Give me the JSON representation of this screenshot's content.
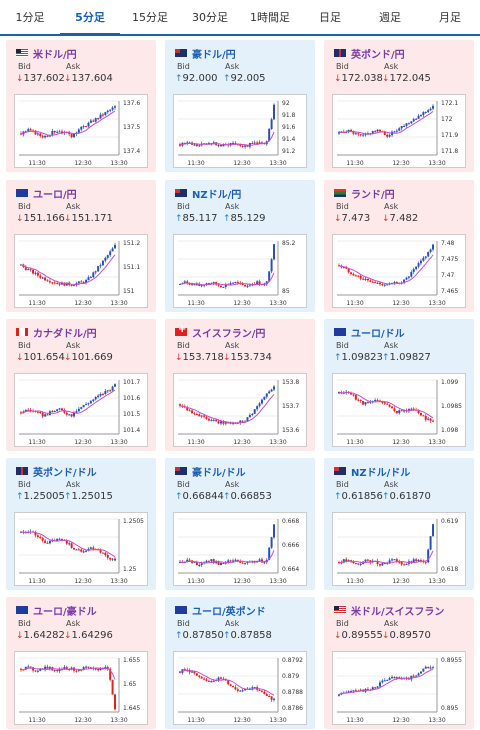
{
  "tabs": [
    "1分足",
    "5分足",
    "15分足",
    "30分足",
    "1時間足",
    "日足",
    "週足",
    "月足"
  ],
  "active_tab": "5分足",
  "labels": {
    "bid": "Bid",
    "ask": "Ask"
  },
  "cards": [
    {
      "pair": "米ドル/円",
      "flag": "us",
      "dir": "down",
      "arrow": "↓",
      "bid": "137.602",
      "ask": "137.604",
      "y_ticks": [
        "137.6",
        "137.5",
        "137.4"
      ],
      "x_ticks": [
        "11:30",
        "12:30",
        "13:30"
      ],
      "trend": "rise_end"
    },
    {
      "pair": "豪ドル/円",
      "flag": "au",
      "dir": "up",
      "arrow": "↑",
      "bid": "92.000",
      "ask": "92.005",
      "y_ticks": [
        "92",
        "91.8",
        "91.6",
        "91.4",
        "91.2"
      ],
      "x_ticks": [
        "11:30",
        "12:30",
        "13:30"
      ],
      "trend": "flat_spike"
    },
    {
      "pair": "英ポンド/円",
      "flag": "gb",
      "dir": "down",
      "arrow": "↓",
      "bid": "172.038",
      "ask": "172.045",
      "y_ticks": [
        "172.1",
        "172",
        "171.9",
        "171.8"
      ],
      "x_ticks": [
        "11:30",
        "12:30",
        "13:30"
      ],
      "trend": "rise_end"
    },
    {
      "pair": "ユーロ/円",
      "flag": "eu",
      "dir": "down",
      "arrow": "↓",
      "bid": "151.166",
      "ask": "151.171",
      "y_ticks": [
        "151.2",
        "151.1",
        "151"
      ],
      "x_ticks": [
        "11:30",
        "12:30",
        "13:30"
      ],
      "trend": "dip_rise"
    },
    {
      "pair": "NZドル/円",
      "flag": "nz",
      "dir": "up",
      "arrow": "↑",
      "bid": "85.117",
      "ask": "85.129",
      "y_ticks": [
        "85.2",
        "85"
      ],
      "x_ticks": [
        "11:30",
        "12:30",
        "13:30"
      ],
      "trend": "flat_spike"
    },
    {
      "pair": "ランド/円",
      "flag": "za",
      "dir": "down",
      "arrow": "↓",
      "bid": "7.473",
      "ask": "7.482",
      "y_ticks": [
        "7.48",
        "7.475",
        "7.47",
        "7.465"
      ],
      "x_ticks": [
        "11:30",
        "12:30",
        "13:30"
      ],
      "trend": "dip_rise"
    },
    {
      "pair": "カナダドル/円",
      "flag": "ca",
      "dir": "down",
      "arrow": "↓",
      "bid": "101.654",
      "ask": "101.669",
      "y_ticks": [
        "101.7",
        "101.6",
        "101.5",
        "101.4"
      ],
      "x_ticks": [
        "11:30",
        "12:30",
        "13:30"
      ],
      "trend": "rise_end"
    },
    {
      "pair": "スイスフラン/円",
      "flag": "ch",
      "dir": "down",
      "arrow": "↓",
      "bid": "153.718",
      "ask": "153.734",
      "y_ticks": [
        "153.8",
        "153.7",
        "153.6"
      ],
      "x_ticks": [
        "11:30",
        "12:30",
        "13:30"
      ],
      "trend": "dip_rise"
    },
    {
      "pair": "ユーロ/ドル",
      "flag": "eu",
      "dir": "up",
      "arrow": "↑",
      "bid": "1.09823",
      "ask": "1.09827",
      "y_ticks": [
        "1.099",
        "1.0985",
        "1.098"
      ],
      "x_ticks": [
        "11:30",
        "12:30",
        "13:30"
      ],
      "trend": "fall"
    },
    {
      "pair": "英ポンド/ドル",
      "flag": "gb",
      "dir": "up",
      "arrow": "↑",
      "bid": "1.25005",
      "ask": "1.25015",
      "y_ticks": [
        "1.2505",
        "1.25"
      ],
      "x_ticks": [
        "11:30",
        "12:30",
        "13:30"
      ],
      "trend": "fall"
    },
    {
      "pair": "豪ドル/ドル",
      "flag": "au",
      "dir": "up",
      "arrow": "↑",
      "bid": "0.66844",
      "ask": "0.66853",
      "y_ticks": [
        "0.668",
        "0.666",
        "0.664"
      ],
      "x_ticks": [
        "11:30",
        "12:30",
        "13:30"
      ],
      "trend": "flat_spike"
    },
    {
      "pair": "NZドル/ドル",
      "flag": "nz",
      "dir": "up",
      "arrow": "↑",
      "bid": "0.61856",
      "ask": "0.61870",
      "y_ticks": [
        "0.619",
        "0.618"
      ],
      "x_ticks": [
        "11:30",
        "12:30",
        "13:30"
      ],
      "trend": "flat_spike"
    },
    {
      "pair": "ユーロ/豪ドル",
      "flag": "eu",
      "dir": "down",
      "arrow": "↓",
      "bid": "1.64282",
      "ask": "1.64296",
      "y_ticks": [
        "1.655",
        "1.65",
        "1.645"
      ],
      "x_ticks": [
        "11:30",
        "12:30",
        "13:30"
      ],
      "trend": "flat_drop"
    },
    {
      "pair": "ユーロ/英ポンド",
      "flag": "eu",
      "dir": "up",
      "arrow": "↑",
      "bid": "0.87850",
      "ask": "0.87858",
      "y_ticks": [
        "0.8792",
        "0.879",
        "0.8788",
        "0.8786"
      ],
      "x_ticks": [
        "11:30",
        "12:30",
        "13:30"
      ],
      "trend": "fall"
    },
    {
      "pair": "米ドル/スイスフラン",
      "flag": "us",
      "dir": "down",
      "arrow": "↓",
      "bid": "0.89555",
      "ask": "0.89570",
      "y_ticks": [
        "0.8955",
        "0.895"
      ],
      "x_ticks": [
        "11:30",
        "12:30",
        "13:30"
      ],
      "trend": "rise"
    }
  ],
  "colors": {
    "tab_active": "#1a5fb4",
    "card_down": "#fde9ea",
    "card_up": "#e4f1fb",
    "candle_up": "#2a4fb8",
    "candle_down": "#d22",
    "ma_line": "#c74ec7"
  }
}
